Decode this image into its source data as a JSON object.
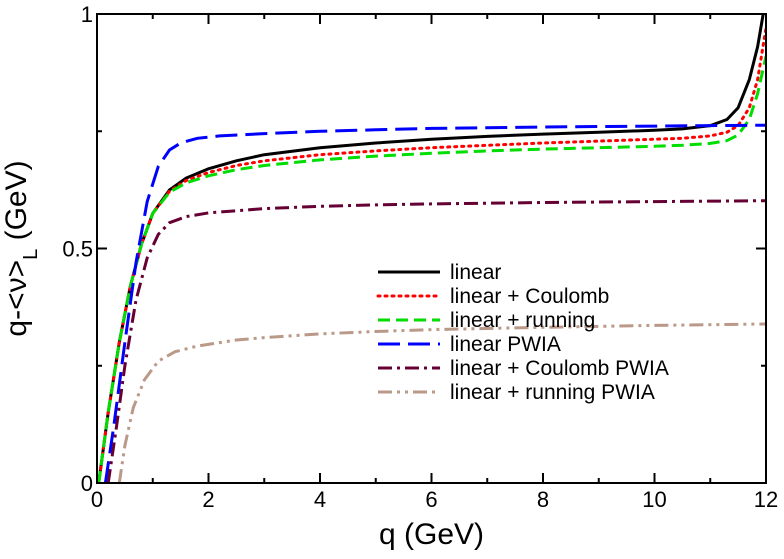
{
  "chart_data": {
    "type": "line",
    "title": "",
    "xlabel": "q (GeV)",
    "ylabel_main": "q-<ν>",
    "ylabel_sub": "L",
    "ylabel_unit": " (GeV)",
    "xlim": [
      0,
      12
    ],
    "ylim": [
      0,
      1
    ],
    "xticks": [
      0,
      2,
      4,
      6,
      8,
      10,
      12
    ],
    "xtick_labels": [
      "0",
      "2",
      "4",
      "6",
      "8",
      "10",
      "12"
    ],
    "yticks": [
      0,
      0.5,
      1
    ],
    "ytick_labels": [
      "0",
      "0.5",
      "1"
    ],
    "grid": false,
    "legend_position": "lower-right",
    "series": [
      {
        "name": "linear",
        "color": "#000000",
        "dash": "solid",
        "x": [
          0.03,
          0.2,
          0.4,
          0.6,
          0.8,
          1.0,
          1.3,
          1.6,
          2.0,
          2.5,
          3,
          4,
          5,
          6,
          7,
          8,
          9,
          10,
          10.5,
          11.0,
          11.3,
          11.5,
          11.7,
          11.85,
          11.95
        ],
        "values": [
          0.0,
          0.15,
          0.3,
          0.42,
          0.51,
          0.575,
          0.625,
          0.65,
          0.67,
          0.687,
          0.7,
          0.715,
          0.725,
          0.733,
          0.739,
          0.744,
          0.748,
          0.752,
          0.755,
          0.762,
          0.775,
          0.8,
          0.86,
          0.93,
          1.0
        ]
      },
      {
        "name": "linear + Coulomb",
        "color": "#ff0000",
        "dash": "dot",
        "x": [
          0.03,
          0.2,
          0.4,
          0.6,
          0.8,
          1.0,
          1.3,
          1.6,
          2.0,
          2.5,
          3,
          4,
          5,
          6,
          7,
          8,
          9,
          10,
          10.5,
          11.0,
          11.3,
          11.5,
          11.7,
          11.85,
          12.0
        ],
        "values": [
          0.0,
          0.15,
          0.3,
          0.42,
          0.51,
          0.575,
          0.622,
          0.645,
          0.662,
          0.677,
          0.687,
          0.7,
          0.708,
          0.715,
          0.72,
          0.725,
          0.729,
          0.733,
          0.735,
          0.74,
          0.748,
          0.762,
          0.8,
          0.86,
          0.97
        ]
      },
      {
        "name": "linear + running",
        "color": "#00dd00",
        "dash": "dash",
        "x": [
          0.03,
          0.2,
          0.4,
          0.6,
          0.8,
          1.0,
          1.3,
          1.6,
          2.0,
          2.5,
          3,
          4,
          5,
          6,
          7,
          8,
          9,
          10,
          10.5,
          11.0,
          11.3,
          11.5,
          11.7,
          11.85,
          12.0
        ],
        "values": [
          0.0,
          0.15,
          0.3,
          0.42,
          0.51,
          0.575,
          0.62,
          0.64,
          0.655,
          0.668,
          0.677,
          0.689,
          0.697,
          0.703,
          0.708,
          0.712,
          0.715,
          0.718,
          0.72,
          0.724,
          0.73,
          0.742,
          0.775,
          0.83,
          0.91
        ]
      },
      {
        "name": "linear PWIA",
        "color": "#0000ff",
        "dash": "longdash",
        "x": [
          0.15,
          0.3,
          0.5,
          0.7,
          0.9,
          1.1,
          1.3,
          1.5,
          1.8,
          2.2,
          3,
          4,
          5,
          6,
          8,
          10,
          11,
          12
        ],
        "values": [
          0.0,
          0.12,
          0.3,
          0.47,
          0.6,
          0.675,
          0.71,
          0.725,
          0.735,
          0.74,
          0.745,
          0.75,
          0.753,
          0.756,
          0.759,
          0.761,
          0.762,
          0.763
        ]
      },
      {
        "name": "linear + Coulomb PWIA",
        "color": "#660033",
        "dash": "dashdot",
        "x": [
          0.2,
          0.35,
          0.5,
          0.7,
          0.9,
          1.1,
          1.3,
          1.6,
          2.0,
          3,
          4,
          5,
          6,
          8,
          10,
          12
        ],
        "values": [
          0.0,
          0.12,
          0.25,
          0.39,
          0.48,
          0.53,
          0.555,
          0.568,
          0.576,
          0.585,
          0.59,
          0.593,
          0.595,
          0.598,
          0.6,
          0.602
        ]
      },
      {
        "name": "linear + running PWIA",
        "color": "#bb9988",
        "dash": "dashdotdot",
        "x": [
          0.4,
          0.5,
          0.65,
          0.85,
          1.1,
          1.4,
          1.8,
          2.5,
          3,
          4,
          5,
          6,
          8,
          10,
          12
        ],
        "values": [
          0.0,
          0.08,
          0.16,
          0.22,
          0.26,
          0.28,
          0.292,
          0.305,
          0.31,
          0.318,
          0.323,
          0.327,
          0.332,
          0.336,
          0.339
        ]
      }
    ]
  }
}
